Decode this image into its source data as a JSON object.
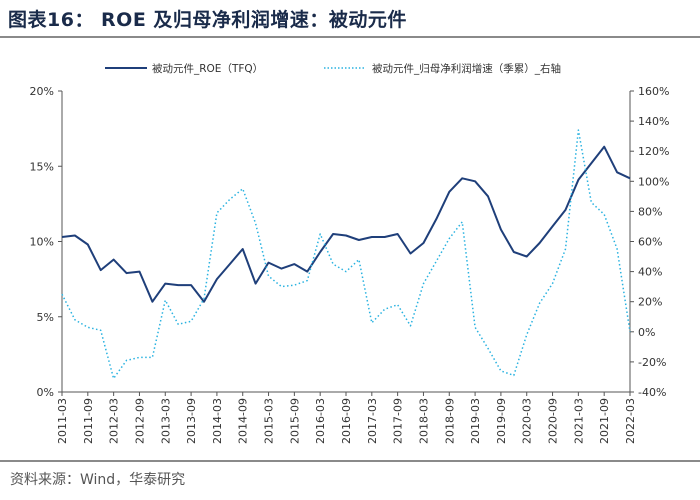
{
  "header": {
    "title": "图表16：  ROE 及归母净利润增速：被动元件"
  },
  "footer": {
    "source": "资料来源：Wind，华泰研究"
  },
  "colors": {
    "roe": "#1f3f7a",
    "growth": "#29b2e0",
    "axis": "#555555",
    "text": "#333333"
  },
  "chart_data": {
    "type": "line",
    "title": "ROE 及归母净利润增速：被动元件",
    "x": [
      "2011-03",
      "2011-06",
      "2011-09",
      "2011-12",
      "2012-03",
      "2012-06",
      "2012-09",
      "2012-12",
      "2013-03",
      "2013-06",
      "2013-09",
      "2013-12",
      "2014-03",
      "2014-06",
      "2014-09",
      "2014-12",
      "2015-03",
      "2015-06",
      "2015-09",
      "2015-12",
      "2016-03",
      "2016-06",
      "2016-09",
      "2016-12",
      "2017-03",
      "2017-06",
      "2017-09",
      "2017-12",
      "2018-03",
      "2018-06",
      "2018-09",
      "2018-12",
      "2019-03",
      "2019-06",
      "2019-09",
      "2019-12",
      "2020-03",
      "2020-06",
      "2020-09",
      "2020-12",
      "2021-03",
      "2021-06",
      "2021-09",
      "2021-12",
      "2022-03"
    ],
    "xtick_labels": [
      "2011-03",
      "2011-09",
      "2012-03",
      "2012-09",
      "2013-03",
      "2013-09",
      "2014-03",
      "2014-09",
      "2015-03",
      "2015-09",
      "2016-03",
      "2016-09",
      "2017-03",
      "2017-09",
      "2018-03",
      "2018-09",
      "2019-03",
      "2019-09",
      "2020-03",
      "2020-09",
      "2021-03",
      "2021-09",
      "2022-03"
    ],
    "series": [
      {
        "name": "被动元件_ROE（TFQ）",
        "axis": "left",
        "style": "solid",
        "values": [
          10.3,
          10.4,
          9.8,
          8.1,
          8.8,
          7.9,
          8.0,
          6.0,
          7.2,
          7.1,
          7.1,
          6.0,
          7.5,
          8.5,
          9.5,
          7.2,
          8.6,
          8.2,
          8.5,
          8.0,
          9.3,
          10.5,
          10.4,
          10.1,
          10.3,
          10.3,
          10.5,
          9.2,
          9.9,
          11.5,
          13.3,
          14.2,
          14.0,
          13.0,
          10.8,
          9.3,
          9.0,
          9.9,
          11.0,
          12.1,
          14.1,
          15.2,
          16.3,
          14.6,
          14.2
        ]
      },
      {
        "name": "被动元件_归母净利润增速（季累）_右轴",
        "axis": "right",
        "style": "dotted",
        "values": [
          25,
          8,
          3,
          1,
          -31,
          -19,
          -17,
          -17,
          21,
          5,
          7,
          22,
          79,
          88,
          95,
          72,
          37,
          30,
          31,
          34,
          65,
          45,
          40,
          48,
          6,
          15,
          18,
          4,
          32,
          47,
          62,
          73,
          3,
          -11,
          -26,
          -29,
          -2,
          19,
          32,
          55,
          134,
          86,
          78,
          55,
          0
        ]
      }
    ],
    "ylim_left": [
      0,
      20
    ],
    "yticks_left": [
      "0%",
      "5%",
      "10%",
      "15%",
      "20%"
    ],
    "ylim_right": [
      -40,
      160
    ],
    "yticks_right": [
      "-40%",
      "-20%",
      "0%",
      "20%",
      "40%",
      "60%",
      "80%",
      "100%",
      "120%",
      "140%",
      "160%"
    ],
    "legend": [
      "被动元件_ROE（TFQ）",
      "被动元件_归母净利润增速（季累）_右轴"
    ],
    "legend_position": "top",
    "grid": false
  }
}
